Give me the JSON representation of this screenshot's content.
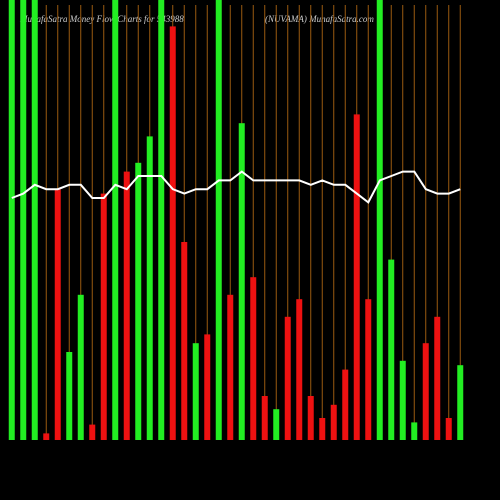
{
  "chart_data": {
    "type": "bar",
    "title": "MunafaSatra  Money Flow  Charts for 543988",
    "subtitle": "(NUVAMA) MunafaSatra.com",
    "values": [
      100,
      100,
      100,
      1.5,
      57,
      20,
      33,
      3.5,
      56,
      100,
      61,
      63,
      69,
      100,
      94,
      45,
      22,
      24,
      100,
      33,
      72,
      37,
      10,
      7,
      28,
      32,
      10,
      5,
      8,
      16,
      74,
      32,
      100,
      41,
      18,
      4,
      22,
      28,
      5,
      17
    ],
    "colors": [
      "#22ee22",
      "#22ee22",
      "#22ee22",
      "#ee1111",
      "#ee1111",
      "#22ee22",
      "#22ee22",
      "#ee1111",
      "#ee1111",
      "#22ee22",
      "#ee1111",
      "#22ee22",
      "#22ee22",
      "#22ee22",
      "#ee1111",
      "#ee1111",
      "#22ee22",
      "#ee1111",
      "#22ee22",
      "#ee1111",
      "#22ee22",
      "#ee1111",
      "#ee1111",
      "#22ee22",
      "#ee1111",
      "#ee1111",
      "#ee1111",
      "#ee1111",
      "#ee1111",
      "#ee1111",
      "#ee1111",
      "#ee1111",
      "#22ee22",
      "#22ee22",
      "#22ee22",
      "#22ee22",
      "#ee1111",
      "#ee1111",
      "#ee1111",
      "#22ee22"
    ],
    "line": {
      "color": "#ffffff",
      "values": [
        55,
        56,
        58,
        57,
        57,
        58,
        58,
        55,
        55,
        58,
        57,
        60,
        60,
        60,
        57,
        56,
        57,
        57,
        59,
        59,
        61,
        59,
        59,
        59,
        59,
        59,
        58,
        59,
        58,
        58,
        56,
        54,
        59,
        60,
        61,
        61,
        57,
        56,
        56,
        57
      ]
    },
    "ylim": [
      0,
      100
    ],
    "grid": true,
    "grid_color": "#9a5a10"
  }
}
